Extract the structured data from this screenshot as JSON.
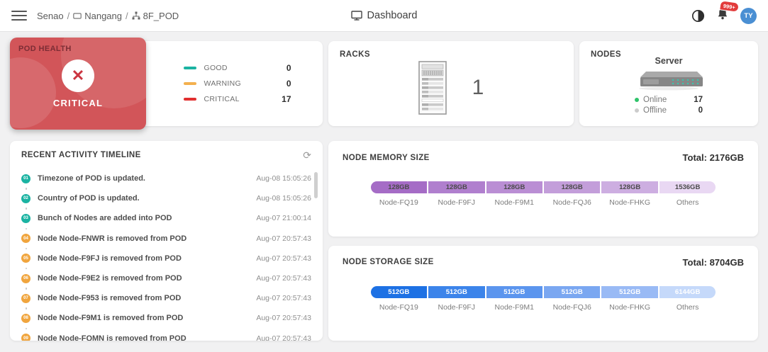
{
  "header": {
    "breadcrumb": {
      "items": [
        "Senao",
        "Nangang",
        "8F_POD"
      ],
      "separator": "/"
    },
    "title": "Dashboard",
    "notification_badge": "999+",
    "avatar_initials": "TY"
  },
  "pod_health": {
    "title": "POD HEALTH",
    "status": "CRITICAL",
    "card_color": "#d25559",
    "legend": [
      {
        "label": "GOOD",
        "value": "0",
        "color": "#1bb3a2"
      },
      {
        "label": "WARNING",
        "value": "0",
        "color": "#f3b04e"
      },
      {
        "label": "CRITICAL",
        "value": "17",
        "color": "#e12f2f"
      }
    ]
  },
  "racks": {
    "title": "RACKS",
    "count": "1"
  },
  "nodes": {
    "title": "NODES",
    "device_label": "Server",
    "stats": [
      {
        "label": "Online",
        "value": "17",
        "dot_color": "#2fc36a"
      },
      {
        "label": "Offline",
        "value": "0",
        "dot_color": "#cccccc"
      }
    ]
  },
  "timeline": {
    "title": "RECENT ACTIVITY TIMELINE",
    "items": [
      {
        "index": "01",
        "text": "Timezone of POD is updated.",
        "time": "Aug-08 15:05:26",
        "color": "#1bb3a2"
      },
      {
        "index": "02",
        "text": "Country of POD is updated.",
        "time": "Aug-08 15:05:26",
        "color": "#1bb3a2"
      },
      {
        "index": "03",
        "text": "Bunch of Nodes are added into POD",
        "time": "Aug-07 21:00:14",
        "color": "#1bb3a2"
      },
      {
        "index": "04",
        "text": "Node Node-FNWR is removed from POD",
        "time": "Aug-07 20:57:43",
        "color": "#f0a53e"
      },
      {
        "index": "05",
        "text": "Node Node-F9FJ is removed from POD",
        "time": "Aug-07 20:57:43",
        "color": "#f0a53e"
      },
      {
        "index": "06",
        "text": "Node Node-F9E2 is removed from POD",
        "time": "Aug-07 20:57:43",
        "color": "#f0a53e"
      },
      {
        "index": "07",
        "text": "Node Node-F953 is removed from POD",
        "time": "Aug-07 20:57:43",
        "color": "#f0a53e"
      },
      {
        "index": "08",
        "text": "Node Node-F9M1 is removed from POD",
        "time": "Aug-07 20:57:43",
        "color": "#f0a53e"
      },
      {
        "index": "09",
        "text": "Node Node-FQMN is removed from POD",
        "time": "Aug-07 20:57:43",
        "color": "#f0a53e"
      }
    ]
  },
  "chart_data": [
    {
      "id": "memory",
      "type": "stacked-bar",
      "title": "NODE MEMORY SIZE",
      "total_label": "Total: 2176GB",
      "unit": "GB",
      "categories": [
        "Node-FQ19",
        "Node-F9FJ",
        "Node-F9M1",
        "Node-FQJ6",
        "Node-FHKG",
        "Others"
      ],
      "values": [
        128,
        128,
        128,
        128,
        128,
        1536
      ],
      "segment_labels": [
        "128GB",
        "128GB",
        "128GB",
        "128GB",
        "128GB",
        "1536GB"
      ],
      "colors": [
        "#a56cc6",
        "#b07fce",
        "#ba8ed4",
        "#c39eda",
        "#cdaee1",
        "#e9d8f3"
      ],
      "segment_text_color": "#4a4a4a",
      "layout": "equal-width-segments"
    },
    {
      "id": "storage",
      "type": "stacked-bar",
      "title": "NODE STORAGE SIZE",
      "total_label": "Total: 8704GB",
      "unit": "GB",
      "categories": [
        "Node-FQ19",
        "Node-F9FJ",
        "Node-F9M1",
        "Node-FQJ6",
        "Node-FHKG",
        "Others"
      ],
      "values": [
        512,
        512,
        512,
        512,
        512,
        6144
      ],
      "segment_labels": [
        "512GB",
        "512GB",
        "512GB",
        "512GB",
        "512GB",
        "6144GB"
      ],
      "colors": [
        "#1d71e4",
        "#3c84ea",
        "#5b95ee",
        "#7aa7f1",
        "#99baf5",
        "#c5d9fa"
      ],
      "segment_text_color": "#ffffff",
      "layout": "equal-width-segments"
    }
  ]
}
